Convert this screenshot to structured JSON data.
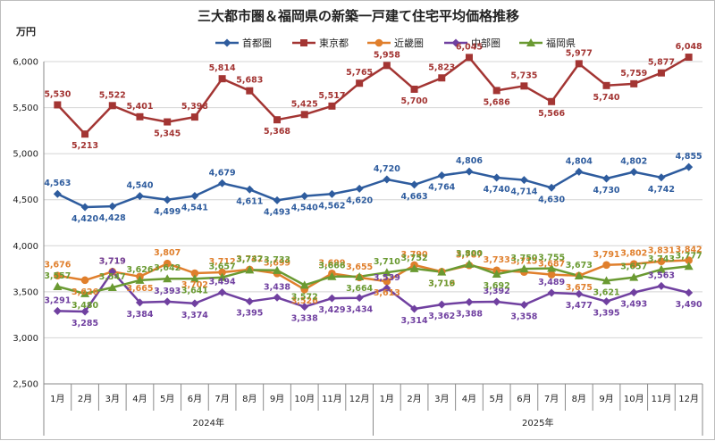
{
  "chart_data": {
    "type": "line",
    "title": "三大都市圏＆福岡県の新築一戸建て住宅平均価格推移",
    "ylabel": "万円",
    "ylim": [
      2500,
      6000
    ],
    "ytick_step": 500,
    "yticks": [
      "2,500",
      "3,000",
      "3,500",
      "4,000",
      "4,500",
      "5,000",
      "5,500",
      "6,000"
    ],
    "categories": [
      "1月",
      "2月",
      "3月",
      "4月",
      "5月",
      "6月",
      "7月",
      "8月",
      "9月",
      "10月",
      "11月",
      "12月",
      "1月",
      "2月",
      "3月",
      "4月",
      "5月",
      "6月",
      "7月",
      "8月",
      "9月",
      "10月",
      "11月",
      "12月"
    ],
    "year_groups": [
      {
        "label": "2024年",
        "count": 12
      },
      {
        "label": "2025年",
        "count": 12
      }
    ],
    "legend_position": "top",
    "series": [
      {
        "name": "首都圏",
        "color": "#2e5c9e",
        "marker": "diamond",
        "values": [
          4563,
          4420,
          4428,
          4540,
          4499,
          4541,
          4679,
          4611,
          4493,
          4540,
          4562,
          4620,
          4720,
          4663,
          4764,
          4806,
          4740,
          4714,
          4630,
          4804,
          4730,
          4802,
          4742,
          4855
        ]
      },
      {
        "name": "東京都",
        "color": "#a33533",
        "marker": "square",
        "values": [
          5530,
          5213,
          5522,
          5401,
          5345,
          5398,
          5814,
          5683,
          5368,
          5425,
          5517,
          5765,
          5958,
          5700,
          5823,
          6045,
          5686,
          5735,
          5566,
          5977,
          5740,
          5759,
          5877,
          6048
        ]
      },
      {
        "name": "近畿圏",
        "color": "#e07f2c",
        "marker": "circle",
        "values": [
          3676,
          3626,
          3719,
          3665,
          3807,
          3702,
          3712,
          3742,
          3699,
          3526,
          3699,
          3655,
          3613,
          3790,
          3719,
          3787,
          3733,
          3715,
          3687,
          3675,
          3791,
          3802,
          3831,
          3842
        ]
      },
      {
        "name": "中部圏",
        "color": "#7040a0",
        "marker": "diamond",
        "values": [
          3291,
          3285,
          3719,
          3384,
          3393,
          3374,
          3494,
          3395,
          3438,
          3338,
          3429,
          3434,
          3539,
          3314,
          3362,
          3388,
          3392,
          3358,
          3489,
          3477,
          3395,
          3493,
          3563,
          3490
        ]
      },
      {
        "name": "福岡県",
        "color": "#6a9a32",
        "marker": "triangle",
        "values": [
          3557,
          3480,
          3547,
          3626,
          3642,
          3641,
          3657,
          3737,
          3733,
          3572,
          3666,
          3664,
          3710,
          3752,
          3716,
          3800,
          3692,
          3750,
          3755,
          3673,
          3621,
          3657,
          3743,
          3777
        ]
      }
    ]
  }
}
